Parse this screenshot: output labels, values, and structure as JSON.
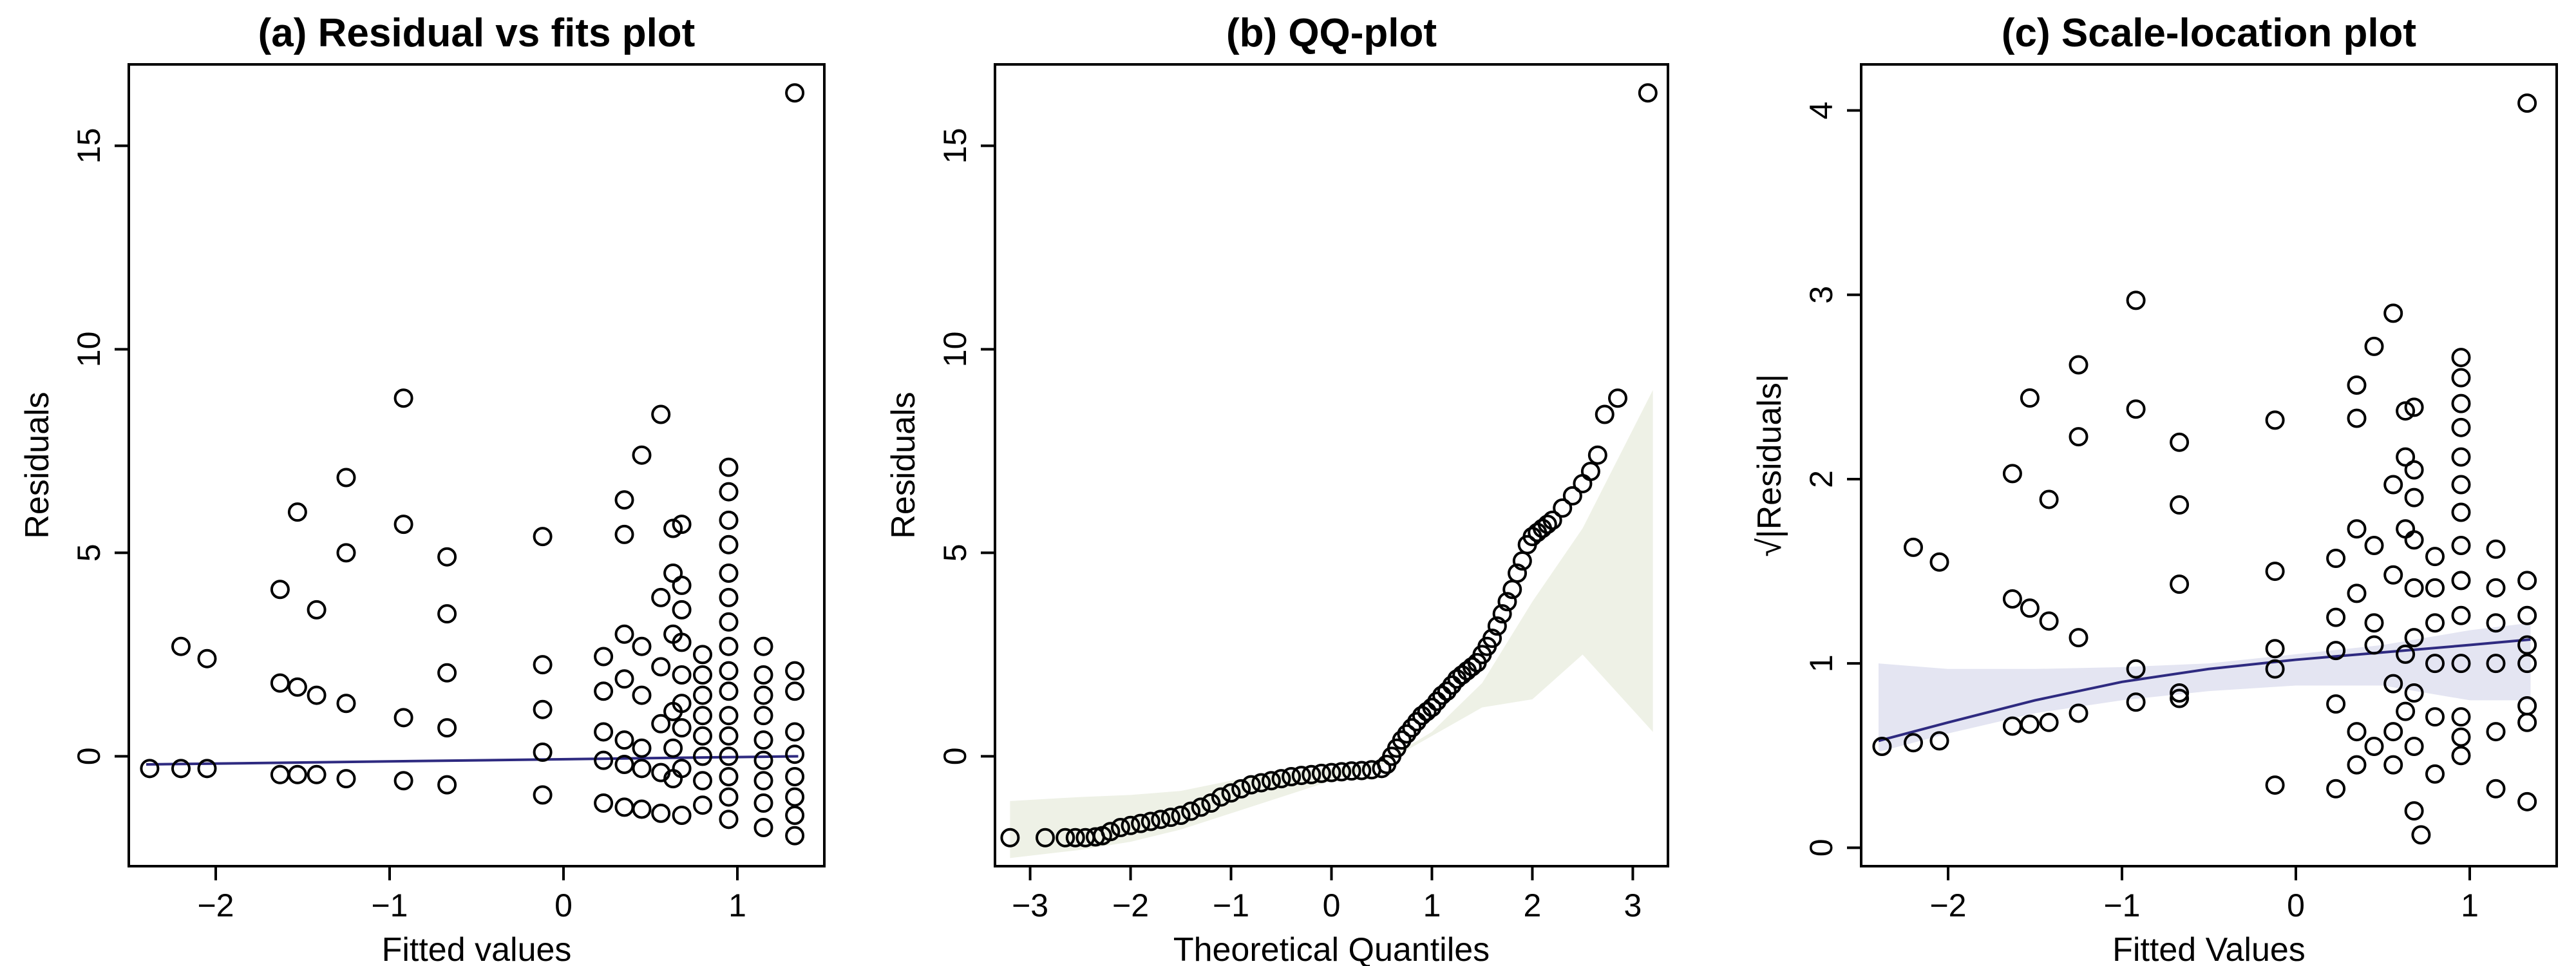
{
  "chart_data": [
    {
      "type": "scatter",
      "title": "(a) Residual vs fits plot",
      "xlabel": "Fitted values",
      "ylabel": "Residuals",
      "xlim": [
        -2.5,
        1.5
      ],
      "ylim": [
        -2.7,
        17.0
      ],
      "xticks": [
        -2,
        -1,
        0,
        1
      ],
      "yticks": [
        0,
        5,
        10,
        15
      ],
      "grid": false,
      "smooth_line": {
        "color": "#2e2a80",
        "x": [
          -2.4,
          1.35
        ],
        "y": [
          -0.2,
          0.0
        ]
      },
      "points": [
        [
          -2.38,
          -0.3
        ],
        [
          -2.2,
          -0.3
        ],
        [
          -2.05,
          -0.3
        ],
        [
          -2.2,
          2.7
        ],
        [
          -2.05,
          2.4
        ],
        [
          -1.63,
          4.1
        ],
        [
          -1.63,
          1.8
        ],
        [
          -1.63,
          -0.45
        ],
        [
          -1.53,
          6.0
        ],
        [
          -1.53,
          1.7
        ],
        [
          -1.53,
          -0.45
        ],
        [
          -1.42,
          3.6
        ],
        [
          -1.42,
          1.5
        ],
        [
          -1.42,
          -0.45
        ],
        [
          -1.25,
          6.85
        ],
        [
          -1.25,
          5.0
        ],
        [
          -1.25,
          1.3
        ],
        [
          -1.25,
          -0.55
        ],
        [
          -0.92,
          8.8
        ],
        [
          -0.92,
          5.7
        ],
        [
          -0.92,
          0.95
        ],
        [
          -0.92,
          -0.6
        ],
        [
          -0.67,
          4.9
        ],
        [
          -0.67,
          3.5
        ],
        [
          -0.67,
          2.05
        ],
        [
          -0.67,
          0.7
        ],
        [
          -0.67,
          -0.7
        ],
        [
          -0.12,
          5.4
        ],
        [
          -0.12,
          2.25
        ],
        [
          -0.12,
          1.15
        ],
        [
          -0.12,
          0.1
        ],
        [
          -0.12,
          -0.95
        ],
        [
          0.23,
          2.45
        ],
        [
          0.23,
          1.6
        ],
        [
          0.23,
          0.6
        ],
        [
          0.23,
          -0.1
        ],
        [
          0.23,
          -1.15
        ],
        [
          0.35,
          6.3
        ],
        [
          0.35,
          5.45
        ],
        [
          0.35,
          3.0
        ],
        [
          0.35,
          1.9
        ],
        [
          0.35,
          0.4
        ],
        [
          0.35,
          -0.2
        ],
        [
          0.35,
          -1.25
        ],
        [
          0.45,
          7.4
        ],
        [
          0.45,
          2.7
        ],
        [
          0.45,
          1.5
        ],
        [
          0.45,
          0.2
        ],
        [
          0.45,
          -0.3
        ],
        [
          0.45,
          -1.3
        ],
        [
          0.56,
          8.4
        ],
        [
          0.56,
          3.9
        ],
        [
          0.56,
          2.2
        ],
        [
          0.56,
          0.8
        ],
        [
          0.56,
          -0.4
        ],
        [
          0.56,
          -1.4
        ],
        [
          0.63,
          5.6
        ],
        [
          0.63,
          4.5
        ],
        [
          0.63,
          3.0
        ],
        [
          0.63,
          1.1
        ],
        [
          0.63,
          0.2
        ],
        [
          0.63,
          -0.55
        ],
        [
          0.68,
          5.7
        ],
        [
          0.68,
          4.2
        ],
        [
          0.68,
          3.6
        ],
        [
          0.68,
          2.8
        ],
        [
          0.68,
          2.0
        ],
        [
          0.68,
          1.3
        ],
        [
          0.68,
          0.7
        ],
        [
          0.68,
          -0.3
        ],
        [
          0.68,
          -1.45
        ],
        [
          0.8,
          2.5
        ],
        [
          0.8,
          2.0
        ],
        [
          0.8,
          1.5
        ],
        [
          0.8,
          1.0
        ],
        [
          0.8,
          0.5
        ],
        [
          0.8,
          0.0
        ],
        [
          0.8,
          -0.6
        ],
        [
          0.8,
          -1.2
        ],
        [
          0.95,
          7.1
        ],
        [
          0.95,
          6.5
        ],
        [
          0.95,
          5.8
        ],
        [
          0.95,
          5.2
        ],
        [
          0.95,
          4.5
        ],
        [
          0.95,
          3.9
        ],
        [
          0.95,
          3.3
        ],
        [
          0.95,
          2.7
        ],
        [
          0.95,
          2.1
        ],
        [
          0.95,
          1.6
        ],
        [
          0.95,
          1.0
        ],
        [
          0.95,
          0.5
        ],
        [
          0.95,
          0.0
        ],
        [
          0.95,
          -0.5
        ],
        [
          0.95,
          -1.0
        ],
        [
          0.95,
          -1.55
        ],
        [
          1.15,
          2.7
        ],
        [
          1.15,
          2.0
        ],
        [
          1.15,
          1.5
        ],
        [
          1.15,
          1.0
        ],
        [
          1.15,
          0.4
        ],
        [
          1.15,
          -0.1
        ],
        [
          1.15,
          -0.6
        ],
        [
          1.15,
          -1.15
        ],
        [
          1.15,
          -1.75
        ],
        [
          1.33,
          16.3
        ],
        [
          1.33,
          2.1
        ],
        [
          1.33,
          1.6
        ],
        [
          1.33,
          0.6
        ],
        [
          1.33,
          0.05
        ],
        [
          1.33,
          -0.5
        ],
        [
          1.33,
          -1.0
        ],
        [
          1.33,
          -1.45
        ],
        [
          1.33,
          -1.95
        ]
      ]
    },
    {
      "type": "scatter",
      "title": "(b) QQ-plot",
      "xlabel": "Theoretical Quantiles",
      "ylabel": "Residuals",
      "xlim": [
        -3.35,
        3.35
      ],
      "ylim": [
        -2.7,
        17.0
      ],
      "xticks": [
        -3,
        -2,
        -1,
        0,
        1,
        2,
        3
      ],
      "yticks": [
        0,
        5,
        10,
        15
      ],
      "grid": false,
      "envelope": {
        "color": "#eef1e6",
        "x": [
          -3.2,
          -2.5,
          -2.0,
          -1.5,
          -1.0,
          -0.5,
          0.0,
          0.5,
          1.0,
          1.5,
          2.0,
          2.5,
          3.2
        ],
        "upper": [
          -1.1,
          -1.0,
          -0.95,
          -0.85,
          -0.6,
          -0.4,
          -0.3,
          -0.15,
          0.6,
          1.8,
          3.8,
          5.6,
          9.0
        ],
        "lower": [
          -2.5,
          -2.3,
          -2.1,
          -1.8,
          -1.4,
          -1.0,
          -0.6,
          -0.2,
          0.5,
          1.2,
          1.4,
          2.5,
          0.6
        ]
      },
      "points": [
        [
          -3.2,
          -2.0
        ],
        [
          -2.85,
          -2.0
        ],
        [
          -2.65,
          -2.0
        ],
        [
          -2.55,
          -2.0
        ],
        [
          -2.45,
          -2.0
        ],
        [
          -2.35,
          -1.98
        ],
        [
          -2.28,
          -1.95
        ],
        [
          -2.2,
          -1.85
        ],
        [
          -2.1,
          -1.75
        ],
        [
          -2.0,
          -1.7
        ],
        [
          -1.9,
          -1.65
        ],
        [
          -1.8,
          -1.6
        ],
        [
          -1.7,
          -1.55
        ],
        [
          -1.6,
          -1.5
        ],
        [
          -1.5,
          -1.45
        ],
        [
          -1.4,
          -1.35
        ],
        [
          -1.3,
          -1.25
        ],
        [
          -1.2,
          -1.15
        ],
        [
          -1.1,
          -1.0
        ],
        [
          -1.0,
          -0.9
        ],
        [
          -0.9,
          -0.8
        ],
        [
          -0.8,
          -0.7
        ],
        [
          -0.7,
          -0.65
        ],
        [
          -0.6,
          -0.6
        ],
        [
          -0.5,
          -0.55
        ],
        [
          -0.4,
          -0.5
        ],
        [
          -0.3,
          -0.47
        ],
        [
          -0.2,
          -0.45
        ],
        [
          -0.1,
          -0.42
        ],
        [
          0.0,
          -0.4
        ],
        [
          0.1,
          -0.38
        ],
        [
          0.2,
          -0.36
        ],
        [
          0.3,
          -0.35
        ],
        [
          0.4,
          -0.33
        ],
        [
          0.5,
          -0.3
        ],
        [
          0.55,
          -0.2
        ],
        [
          0.6,
          0.0
        ],
        [
          0.65,
          0.2
        ],
        [
          0.7,
          0.4
        ],
        [
          0.75,
          0.55
        ],
        [
          0.8,
          0.7
        ],
        [
          0.85,
          0.85
        ],
        [
          0.9,
          1.0
        ],
        [
          0.95,
          1.1
        ],
        [
          1.0,
          1.2
        ],
        [
          1.05,
          1.35
        ],
        [
          1.1,
          1.5
        ],
        [
          1.15,
          1.6
        ],
        [
          1.2,
          1.75
        ],
        [
          1.25,
          1.9
        ],
        [
          1.3,
          2.0
        ],
        [
          1.35,
          2.1
        ],
        [
          1.4,
          2.2
        ],
        [
          1.45,
          2.3
        ],
        [
          1.5,
          2.5
        ],
        [
          1.55,
          2.7
        ],
        [
          1.6,
          2.9
        ],
        [
          1.65,
          3.2
        ],
        [
          1.7,
          3.5
        ],
        [
          1.75,
          3.8
        ],
        [
          1.8,
          4.1
        ],
        [
          1.85,
          4.5
        ],
        [
          1.9,
          4.8
        ],
        [
          1.95,
          5.2
        ],
        [
          2.0,
          5.4
        ],
        [
          2.05,
          5.5
        ],
        [
          2.1,
          5.6
        ],
        [
          2.15,
          5.7
        ],
        [
          2.2,
          5.8
        ],
        [
          2.3,
          6.1
        ],
        [
          2.4,
          6.4
        ],
        [
          2.5,
          6.7
        ],
        [
          2.58,
          7.0
        ],
        [
          2.65,
          7.4
        ],
        [
          2.72,
          8.4
        ],
        [
          2.85,
          8.8
        ],
        [
          3.15,
          16.3
        ]
      ]
    },
    {
      "type": "scatter",
      "title": "(c) Scale-location plot",
      "xlabel": "Fitted Values",
      "ylabel": "√|Residuals|",
      "xlim": [
        -2.5,
        1.5
      ],
      "ylim": [
        -0.1,
        4.25
      ],
      "xticks": [
        -2,
        -1,
        0,
        1
      ],
      "yticks": [
        0,
        1,
        2,
        3,
        4
      ],
      "grid": false,
      "smooth_line": {
        "color": "#2e2a80",
        "x": [
          -2.4,
          -2.0,
          -1.5,
          -1.0,
          -0.5,
          0.0,
          0.5,
          1.0,
          1.35
        ],
        "y": [
          0.58,
          0.68,
          0.8,
          0.9,
          0.97,
          1.02,
          1.06,
          1.1,
          1.13
        ]
      },
      "band": {
        "color": "#e4e5f2",
        "x": [
          -2.4,
          -2.0,
          -1.5,
          -1.0,
          -0.5,
          0.0,
          0.5,
          1.0,
          1.35
        ],
        "upper": [
          1.0,
          0.97,
          0.97,
          0.98,
          1.0,
          1.05,
          1.1,
          1.18,
          1.22
        ],
        "lower": [
          0.52,
          0.62,
          0.73,
          0.8,
          0.85,
          0.88,
          0.88,
          0.8,
          0.8
        ]
      },
      "points": [
        [
          -2.38,
          0.55
        ],
        [
          -2.2,
          0.57
        ],
        [
          -2.05,
          0.58
        ],
        [
          -2.2,
          1.63
        ],
        [
          -2.05,
          1.55
        ],
        [
          -1.63,
          2.03
        ],
        [
          -1.63,
          1.35
        ],
        [
          -1.63,
          0.66
        ],
        [
          -1.53,
          2.44
        ],
        [
          -1.53,
          1.3
        ],
        [
          -1.53,
          0.67
        ],
        [
          -1.42,
          1.89
        ],
        [
          -1.42,
          1.23
        ],
        [
          -1.42,
          0.68
        ],
        [
          -1.25,
          2.62
        ],
        [
          -1.25,
          2.23
        ],
        [
          -1.25,
          1.14
        ],
        [
          -1.25,
          0.73
        ],
        [
          -0.92,
          2.97
        ],
        [
          -0.92,
          2.38
        ],
        [
          -0.92,
          0.97
        ],
        [
          -0.92,
          0.79
        ],
        [
          -0.67,
          2.2
        ],
        [
          -0.67,
          1.86
        ],
        [
          -0.67,
          1.43
        ],
        [
          -0.67,
          0.84
        ],
        [
          -0.67,
          0.81
        ],
        [
          -0.12,
          2.32
        ],
        [
          -0.12,
          1.5
        ],
        [
          -0.12,
          1.08
        ],
        [
          -0.12,
          0.97
        ],
        [
          -0.12,
          0.34
        ],
        [
          0.23,
          1.57
        ],
        [
          0.23,
          1.25
        ],
        [
          0.23,
          1.07
        ],
        [
          0.23,
          0.78
        ],
        [
          0.23,
          0.32
        ],
        [
          0.35,
          2.51
        ],
        [
          0.35,
          2.33
        ],
        [
          0.35,
          1.73
        ],
        [
          0.35,
          1.38
        ],
        [
          0.35,
          0.63
        ],
        [
          0.35,
          0.45
        ],
        [
          0.45,
          2.72
        ],
        [
          0.45,
          1.64
        ],
        [
          0.45,
          1.22
        ],
        [
          0.45,
          1.1
        ],
        [
          0.45,
          0.55
        ],
        [
          0.56,
          2.9
        ],
        [
          0.56,
          1.97
        ],
        [
          0.56,
          1.48
        ],
        [
          0.56,
          0.89
        ],
        [
          0.56,
          0.63
        ],
        [
          0.56,
          0.45
        ],
        [
          0.63,
          2.37
        ],
        [
          0.63,
          2.12
        ],
        [
          0.63,
          1.73
        ],
        [
          0.63,
          1.05
        ],
        [
          0.63,
          0.74
        ],
        [
          0.68,
          2.39
        ],
        [
          0.68,
          2.05
        ],
        [
          0.68,
          1.9
        ],
        [
          0.68,
          1.67
        ],
        [
          0.68,
          1.41
        ],
        [
          0.68,
          1.14
        ],
        [
          0.68,
          0.84
        ],
        [
          0.68,
          0.55
        ],
        [
          0.68,
          0.2
        ],
        [
          0.72,
          0.07
        ],
        [
          0.8,
          1.58
        ],
        [
          0.8,
          1.41
        ],
        [
          0.8,
          1.22
        ],
        [
          0.8,
          1.0
        ],
        [
          0.8,
          0.71
        ],
        [
          0.8,
          0.4
        ],
        [
          0.95,
          2.66
        ],
        [
          0.95,
          2.55
        ],
        [
          0.95,
          2.41
        ],
        [
          0.95,
          2.28
        ],
        [
          0.95,
          2.12
        ],
        [
          0.95,
          1.97
        ],
        [
          0.95,
          1.82
        ],
        [
          0.95,
          1.64
        ],
        [
          0.95,
          1.45
        ],
        [
          0.95,
          1.26
        ],
        [
          0.95,
          1.0
        ],
        [
          0.95,
          0.71
        ],
        [
          0.95,
          0.5
        ],
        [
          0.95,
          0.6
        ],
        [
          1.15,
          1.62
        ],
        [
          1.15,
          1.41
        ],
        [
          1.15,
          1.22
        ],
        [
          1.15,
          1.0
        ],
        [
          1.15,
          0.63
        ],
        [
          1.15,
          0.32
        ],
        [
          1.33,
          4.04
        ],
        [
          1.33,
          1.45
        ],
        [
          1.33,
          1.26
        ],
        [
          1.33,
          1.1
        ],
        [
          1.33,
          0.77
        ],
        [
          1.33,
          0.68
        ],
        [
          1.33,
          0.25
        ],
        [
          1.33,
          1.0
        ]
      ]
    }
  ]
}
